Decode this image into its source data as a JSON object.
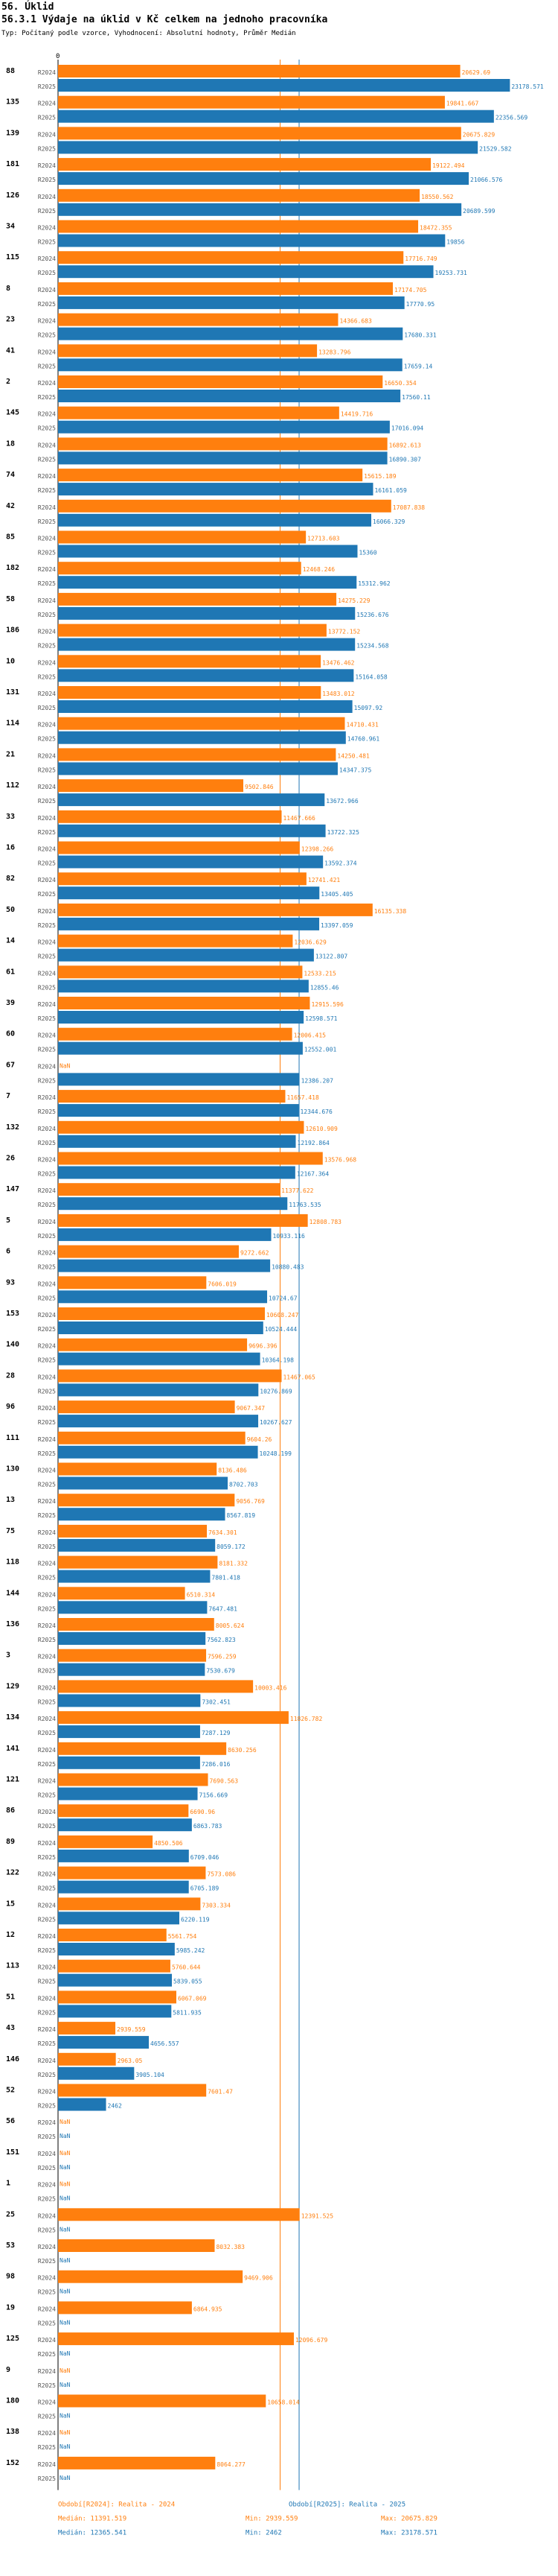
{
  "header": {
    "section": "56. Úklid",
    "title": "56.3.1 Výdaje na úklid v Kč celkem na jednoho pracovníka",
    "subtitle": "Typ: Počítaný podle vzorce, Vyhodnocení: Absolutní hodnoty, Průměr Medián"
  },
  "colors": {
    "r2024": "#ff7f0e",
    "r2025": "#1f77b4"
  },
  "chart_data": {
    "type": "bar",
    "orientation": "horizontal",
    "x_tick_label": "0",
    "xlim": [
      0,
      24500
    ],
    "series_labels": [
      "R2024",
      "R2025"
    ],
    "nan_label": "NaN",
    "categories": [
      {
        "id": "88",
        "r2024": "20629.69",
        "r2025": "23178.571"
      },
      {
        "id": "135",
        "r2024": "19841.667",
        "r2025": "22356.569"
      },
      {
        "id": "139",
        "r2024": "20675.829",
        "r2025": "21529.582"
      },
      {
        "id": "181",
        "r2024": "19122.494",
        "r2025": "21066.576"
      },
      {
        "id": "126",
        "r2024": "18550.562",
        "r2025": "20689.599"
      },
      {
        "id": "34",
        "r2024": "18472.355",
        "r2025": "19856"
      },
      {
        "id": "115",
        "r2024": "17716.749",
        "r2025": "19253.731"
      },
      {
        "id": "8",
        "r2024": "17174.705",
        "r2025": "17770.95"
      },
      {
        "id": "23",
        "r2024": "14366.683",
        "r2025": "17680.331"
      },
      {
        "id": "41",
        "r2024": "13283.796",
        "r2025": "17659.14"
      },
      {
        "id": "2",
        "r2024": "16650.354",
        "r2025": "17560.11"
      },
      {
        "id": "145",
        "r2024": "14419.716",
        "r2025": "17016.094"
      },
      {
        "id": "18",
        "r2024": "16892.613",
        "r2025": "16890.307"
      },
      {
        "id": "74",
        "r2024": "15615.189",
        "r2025": "16161.059"
      },
      {
        "id": "42",
        "r2024": "17087.838",
        "r2025": "16066.329"
      },
      {
        "id": "85",
        "r2024": "12713.603",
        "r2025": "15360"
      },
      {
        "id": "182",
        "r2024": "12468.246",
        "r2025": "15312.962"
      },
      {
        "id": "58",
        "r2024": "14275.229",
        "r2025": "15236.676"
      },
      {
        "id": "186",
        "r2024": "13772.152",
        "r2025": "15234.568"
      },
      {
        "id": "10",
        "r2024": "13476.462",
        "r2025": "15164.058"
      },
      {
        "id": "131",
        "r2024": "13483.012",
        "r2025": "15097.92"
      },
      {
        "id": "114",
        "r2024": "14710.431",
        "r2025": "14760.961"
      },
      {
        "id": "21",
        "r2024": "14250.481",
        "r2025": "14347.375"
      },
      {
        "id": "112",
        "r2024": "9502.846",
        "r2025": "13672.966"
      },
      {
        "id": "33",
        "r2024": "11467.666",
        "r2025": "13722.325"
      },
      {
        "id": "16",
        "r2024": "12398.266",
        "r2025": "13592.374"
      },
      {
        "id": "82",
        "r2024": "12741.421",
        "r2025": "13405.405"
      },
      {
        "id": "50",
        "r2024": "16135.338",
        "r2025": "13397.059"
      },
      {
        "id": "14",
        "r2024": "12036.629",
        "r2025": "13122.807"
      },
      {
        "id": "61",
        "r2024": "12533.215",
        "r2025": "12855.46"
      },
      {
        "id": "39",
        "r2024": "12915.596",
        "r2025": "12598.571"
      },
      {
        "id": "60",
        "r2024": "12006.415",
        "r2025": "12552.001"
      },
      {
        "id": "67",
        "r2024": "NaN",
        "r2025": "12386.207"
      },
      {
        "id": "7",
        "r2024": "11657.418",
        "r2025": "12344.676"
      },
      {
        "id": "132",
        "r2024": "12610.909",
        "r2025": "12192.864"
      },
      {
        "id": "26",
        "r2024": "13576.968",
        "r2025": "12167.364"
      },
      {
        "id": "147",
        "r2024": "11377.622",
        "r2025": "11763.535"
      },
      {
        "id": "5",
        "r2024": "12808.783",
        "r2025": "10933.116"
      },
      {
        "id": "6",
        "r2024": "9272.662",
        "r2025": "10880.483"
      },
      {
        "id": "93",
        "r2024": "7606.019",
        "r2025": "10724.67"
      },
      {
        "id": "153",
        "r2024": "10608.247",
        "r2025": "10524.444"
      },
      {
        "id": "140",
        "r2024": "9696.396",
        "r2025": "10364.198"
      },
      {
        "id": "28",
        "r2024": "11467.065",
        "r2025": "10276.869"
      },
      {
        "id": "96",
        "r2024": "9067.347",
        "r2025": "10267.627"
      },
      {
        "id": "111",
        "r2024": "9604.26",
        "r2025": "10248.199"
      },
      {
        "id": "130",
        "r2024": "8136.486",
        "r2025": "8702.703"
      },
      {
        "id": "13",
        "r2024": "9056.769",
        "r2025": "8567.819"
      },
      {
        "id": "75",
        "r2024": "7634.301",
        "r2025": "8059.172"
      },
      {
        "id": "118",
        "r2024": "8181.332",
        "r2025": "7801.418"
      },
      {
        "id": "144",
        "r2024": "6510.314",
        "r2025": "7647.481"
      },
      {
        "id": "136",
        "r2024": "8005.624",
        "r2025": "7562.823"
      },
      {
        "id": "3",
        "r2024": "7596.259",
        "r2025": "7530.679"
      },
      {
        "id": "129",
        "r2024": "10003.416",
        "r2025": "7302.451"
      },
      {
        "id": "134",
        "r2024": "11826.782",
        "r2025": "7287.129"
      },
      {
        "id": "141",
        "r2024": "8630.256",
        "r2025": "7286.016"
      },
      {
        "id": "121",
        "r2024": "7690.563",
        "r2025": "7156.669"
      },
      {
        "id": "86",
        "r2024": "6690.96",
        "r2025": "6863.783"
      },
      {
        "id": "89",
        "r2024": "4850.506",
        "r2025": "6709.046"
      },
      {
        "id": "122",
        "r2024": "7573.086",
        "r2025": "6705.189"
      },
      {
        "id": "15",
        "r2024": "7303.334",
        "r2025": "6220.119"
      },
      {
        "id": "12",
        "r2024": "5561.754",
        "r2025": "5985.242"
      },
      {
        "id": "113",
        "r2024": "5760.644",
        "r2025": "5839.055"
      },
      {
        "id": "51",
        "r2024": "6067.069",
        "r2025": "5811.935"
      },
      {
        "id": "43",
        "r2024": "2939.559",
        "r2025": "4656.557"
      },
      {
        "id": "146",
        "r2024": "2963.05",
        "r2025": "3905.104"
      },
      {
        "id": "52",
        "r2024": "7601.47",
        "r2025": "2462"
      },
      {
        "id": "56",
        "r2024": "NaN",
        "r2025": "NaN"
      },
      {
        "id": "151",
        "r2024": "NaN",
        "r2025": "NaN"
      },
      {
        "id": "1",
        "r2024": "NaN",
        "r2025": "NaN"
      },
      {
        "id": "25",
        "r2024": "12391.525",
        "r2025": "NaN"
      },
      {
        "id": "53",
        "r2024": "8032.383",
        "r2025": "NaN"
      },
      {
        "id": "98",
        "r2024": "9469.906",
        "r2025": "NaN"
      },
      {
        "id": "19",
        "r2024": "6864.935",
        "r2025": "NaN"
      },
      {
        "id": "125",
        "r2024": "12096.679",
        "r2025": "NaN"
      },
      {
        "id": "9",
        "r2024": "NaN",
        "r2025": "NaN"
      },
      {
        "id": "180",
        "r2024": "10658.014",
        "r2025": "NaN"
      },
      {
        "id": "138",
        "r2024": "NaN",
        "r2025": "NaN"
      },
      {
        "id": "152",
        "r2024": "8064.277",
        "r2025": "NaN"
      }
    ],
    "median_lines": [
      {
        "series": "R2024",
        "value": 11391.519
      },
      {
        "series": "R2025",
        "value": 12365.541
      }
    ],
    "legend": [
      [
        "Období[R2024]: Realita - 2024",
        "Období[R2025]: Realita - 2025"
      ],
      [
        "Medián: 11391.519",
        "Min: 2939.559",
        "Max: 20675.829"
      ],
      [
        "Medián: 12365.541",
        "Min: 2462",
        "Max: 23178.571"
      ]
    ]
  }
}
